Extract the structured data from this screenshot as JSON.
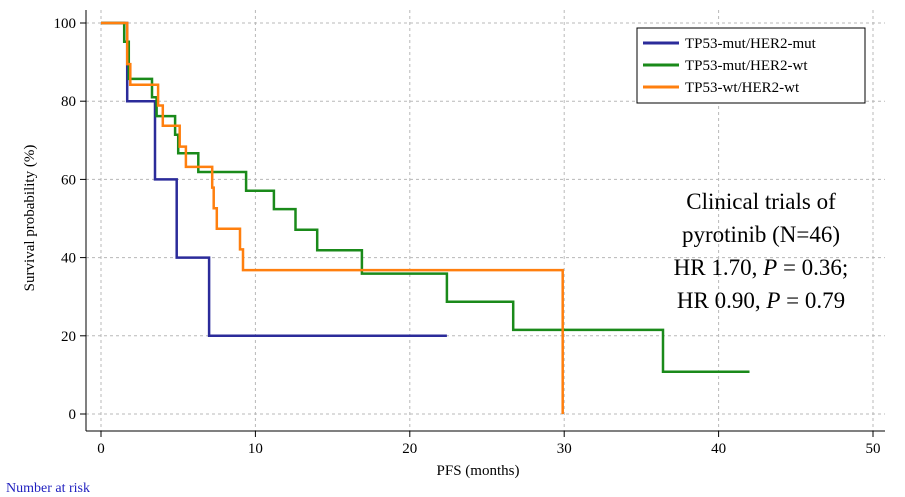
{
  "chart_data": {
    "type": "line",
    "subtype": "kaplan-meier step",
    "title": "",
    "xlabel": "PFS (months)",
    "ylabel": "Survival probability (%)",
    "xlim": [
      0,
      50
    ],
    "ylim": [
      0,
      100
    ],
    "xticks": [
      0,
      10,
      20,
      30,
      40,
      50
    ],
    "yticks": [
      0,
      20,
      40,
      60,
      80,
      100
    ],
    "grid": true,
    "legend_position": "top-right",
    "series": [
      {
        "name": "TP53-mut/HER2-mut",
        "color": "#2b2b9a",
        "points": [
          [
            0,
            100
          ],
          [
            1.7,
            100
          ],
          [
            1.7,
            80
          ],
          [
            3.5,
            80
          ],
          [
            3.5,
            60
          ],
          [
            4.9,
            60
          ],
          [
            4.9,
            40
          ],
          [
            7.0,
            40
          ],
          [
            7.0,
            20
          ],
          [
            22.4,
            20
          ]
        ]
      },
      {
        "name": "TP53-mut/HER2-wt",
        "color": "#1a8a1a",
        "points": [
          [
            0,
            100
          ],
          [
            1.5,
            100
          ],
          [
            1.5,
            95.2
          ],
          [
            1.8,
            95.2
          ],
          [
            1.8,
            85.7
          ],
          [
            3.3,
            85.7
          ],
          [
            3.3,
            81
          ],
          [
            3.6,
            81
          ],
          [
            3.6,
            76.2
          ],
          [
            4.8,
            76.2
          ],
          [
            4.8,
            71.4
          ],
          [
            5.0,
            71.4
          ],
          [
            5.0,
            66.7
          ],
          [
            6.3,
            66.7
          ],
          [
            6.3,
            61.9
          ],
          [
            9.4,
            61.9
          ],
          [
            9.4,
            57.1
          ],
          [
            11.2,
            57.1
          ],
          [
            11.2,
            52.4
          ],
          [
            12.6,
            52.4
          ],
          [
            12.6,
            47.1
          ],
          [
            14.0,
            47.1
          ],
          [
            14.0,
            41.9
          ],
          [
            16.9,
            41.9
          ],
          [
            16.9,
            35.9
          ],
          [
            22.4,
            35.9
          ],
          [
            22.4,
            28.7
          ],
          [
            26.7,
            28.7
          ],
          [
            26.7,
            21.5
          ],
          [
            36.4,
            21.5
          ],
          [
            36.4,
            10.8
          ],
          [
            42.0,
            10.8
          ]
        ]
      },
      {
        "name": "TP53-wt/HER2-wt",
        "color": "#ff7f0e",
        "points": [
          [
            0,
            100
          ],
          [
            1.7,
            100
          ],
          [
            1.7,
            89.5
          ],
          [
            1.9,
            89.5
          ],
          [
            1.9,
            84.2
          ],
          [
            3.7,
            84.2
          ],
          [
            3.7,
            78.9
          ],
          [
            4.0,
            78.9
          ],
          [
            4.0,
            73.7
          ],
          [
            5.1,
            73.7
          ],
          [
            5.1,
            68.4
          ],
          [
            5.5,
            68.4
          ],
          [
            5.5,
            63.2
          ],
          [
            7.2,
            63.2
          ],
          [
            7.2,
            57.9
          ],
          [
            7.3,
            57.9
          ],
          [
            7.3,
            52.6
          ],
          [
            7.5,
            52.6
          ],
          [
            7.5,
            47.4
          ],
          [
            9.0,
            47.4
          ],
          [
            9.0,
            42.1
          ],
          [
            9.2,
            42.1
          ],
          [
            9.2,
            36.8
          ],
          [
            29.9,
            36.8
          ],
          [
            29.9,
            0
          ]
        ]
      }
    ],
    "annotation": {
      "lines": [
        "Clinical trials of",
        "pyrotinib (N=46)"
      ],
      "hr_lines": [
        {
          "hr": "HR 1.70,",
          "p_label": "P",
          "p_value": "= 0.36;"
        },
        {
          "hr": "HR 0.90,",
          "p_label": "P",
          "p_value": "= 0.79"
        }
      ]
    }
  },
  "footer": {
    "number_at_risk_label": "Number at risk"
  }
}
